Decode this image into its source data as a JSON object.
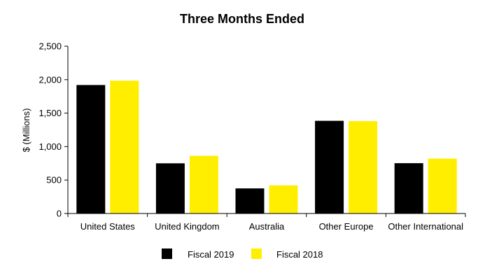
{
  "chart_data": {
    "type": "bar",
    "title": "Three Months Ended",
    "xlabel": "",
    "ylabel": "$ (Millions)",
    "categories": [
      "United States",
      "United Kingdom",
      "Australia",
      "Other Europe",
      "Other International"
    ],
    "series": [
      {
        "name": "Fiscal 2019",
        "color": "#000000",
        "values": [
          1920,
          750,
          375,
          1385,
          752
        ]
      },
      {
        "name": "Fiscal 2018",
        "color": "#ffee00",
        "values": [
          1985,
          862,
          420,
          1380,
          820
        ]
      }
    ],
    "ylim": [
      0,
      2500
    ],
    "yticks": [
      "0",
      "500",
      "1,000",
      "1,500",
      "2,000",
      "2,500"
    ],
    "ytick_values": [
      0,
      500,
      1000,
      1500,
      2000,
      2500
    ],
    "grid": false,
    "legend_position": "bottom"
  }
}
